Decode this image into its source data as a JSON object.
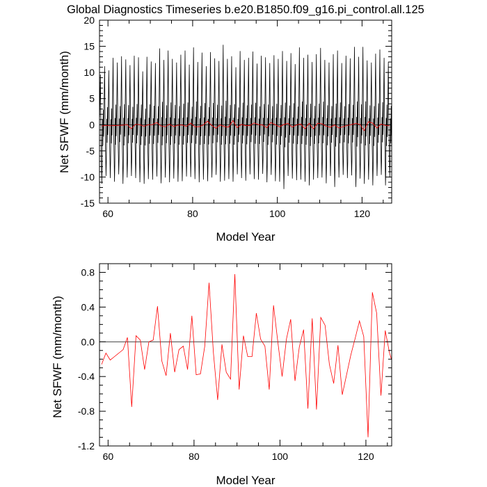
{
  "title": "Global Diagnostics Timeseries b.e20.B1850.f09_g16.pi_control.all.125",
  "colors": {
    "monthly": "#000000",
    "annual": "#ff0000",
    "zero_line": "#000000",
    "frame": "#000000"
  },
  "chart_data": [
    {
      "type": "line",
      "xlabel": "Model Year",
      "ylabel": "Net SFWF (mm/month)",
      "xlim": [
        58,
        127
      ],
      "ylim": [
        -15,
        20
      ],
      "xticks": [
        60,
        80,
        100,
        120
      ],
      "xtick_labels": [
        "60",
        "80",
        "100",
        "120"
      ],
      "yticks": [
        -15,
        -10,
        -5,
        0,
        5,
        10,
        15,
        20
      ],
      "ytick_labels": [
        "-15",
        "-10",
        "-5",
        "0",
        "5",
        "10",
        "15",
        "20"
      ],
      "minor_xtick_step": 5,
      "minor_ytick_step": 1,
      "reference_line": 0,
      "grid": false,
      "series": [
        {
          "kind": "monthly",
          "color": "#000000",
          "x_start": 58,
          "points_per_year": 12,
          "annual_maxima": [
            9.6,
            11.2,
            10.4,
            12.8,
            11.9,
            13.1,
            12.5,
            11.4,
            13.2,
            12.9,
            10.2,
            13.0,
            12.1,
            11.8,
            14.6,
            12.4,
            14.2,
            12.6,
            11.9,
            13.4,
            14.2,
            11.5,
            14.8,
            12.0,
            13.8,
            11.2,
            13.9,
            12.7,
            12.2,
            15.3,
            12.6,
            13.1,
            11.0,
            14.1,
            12.4,
            12.8,
            14.0,
            11.7,
            13.2,
            12.9,
            11.8,
            13.3,
            12.6,
            14.1,
            12.2,
            13.7,
            11.6,
            14.8,
            12.8,
            13.4,
            12.0,
            13.5,
            14.7,
            12.4,
            11.9,
            13.5,
            14.2,
            11.8,
            13.2,
            12.7,
            14.9,
            13.0,
            14.9,
            12.3,
            11.9,
            13.6,
            14.4,
            12.8,
            12.0
          ],
          "annual_minima": [
            -11.3,
            -9.8,
            -10.2,
            -10.9,
            -9.5,
            -11.3,
            -10.1,
            -9.8,
            -10.2,
            -11.0,
            -11.3,
            -10.4,
            -10.5,
            -9.9,
            -11.2,
            -10.1,
            -11.0,
            -10.3,
            -10.9,
            -10.8,
            -9.9,
            -10.0,
            -10.4,
            -11.0,
            -10.5,
            -10.8,
            -10.1,
            -9.6,
            -10.9,
            -10.7,
            -10.4,
            -10.9,
            -9.5,
            -10.2,
            -10.7,
            -9.5,
            -10.4,
            -10.5,
            -9.4,
            -11.0,
            -9.6,
            -10.8,
            -10.9,
            -12.3,
            -9.8,
            -10.3,
            -10.6,
            -10.5,
            -10.9,
            -11.6,
            -10.5,
            -10.2,
            -10.1,
            -11.2,
            -9.8,
            -11.9,
            -10.1,
            -9.6,
            -10.2,
            -9.7,
            -11.9,
            -10.3,
            -11.3,
            -10.5,
            -11.6,
            -9.8,
            -9.6,
            -11.6,
            -10.1
          ]
        },
        {
          "kind": "annual",
          "color": "#ff0000",
          "x": [
            58,
            59,
            60,
            61,
            62,
            63,
            64,
            65,
            66,
            67,
            68,
            69,
            70,
            71,
            72,
            73,
            74,
            75,
            76,
            77,
            78,
            79,
            80,
            81,
            82,
            83,
            84,
            85,
            86,
            87,
            88,
            89,
            90,
            91,
            92,
            93,
            94,
            95,
            96,
            97,
            98,
            99,
            100,
            101,
            102,
            103,
            104,
            105,
            106,
            107,
            108,
            109,
            110,
            111,
            112,
            113,
            114,
            115,
            116,
            117,
            118,
            119,
            120,
            121,
            122,
            123,
            124,
            125,
            126
          ],
          "y": [
            -0.26,
            -0.13,
            -0.21,
            -0.17,
            -0.13,
            -0.09,
            0.05,
            -0.75,
            0.07,
            0.02,
            -0.32,
            0.0,
            0.02,
            0.41,
            -0.22,
            -0.39,
            0.1,
            -0.35,
            -0.09,
            -0.05,
            -0.32,
            0.3,
            -0.38,
            -0.37,
            -0.05,
            0.68,
            -0.12,
            -0.67,
            -0.03,
            -0.35,
            -0.43,
            0.78,
            -0.55,
            0.07,
            -0.17,
            -0.17,
            0.33,
            0.03,
            -0.05,
            -0.55,
            0.42,
            0.0,
            -0.4,
            0.03,
            0.26,
            -0.45,
            -0.06,
            0.14,
            -0.77,
            0.27,
            -0.78,
            0.28,
            0.19,
            -0.26,
            -0.48,
            -0.04,
            -0.61,
            -0.38,
            -0.15,
            0.04,
            0.24,
            0.06,
            -1.1,
            0.57,
            0.33,
            -0.62,
            0.13,
            -0.13,
            -0.21
          ]
        }
      ]
    },
    {
      "type": "line",
      "xlabel": "Model Year",
      "ylabel": "Net SFWF (mm/month)",
      "xlim": [
        58,
        126
      ],
      "ylim": [
        -1.2,
        0.9
      ],
      "xticks": [
        60,
        80,
        100,
        120
      ],
      "xtick_labels": [
        "60",
        "80",
        "100",
        "120"
      ],
      "yticks": [
        -1.2,
        -0.8,
        -0.4,
        0.0,
        0.4,
        0.8
      ],
      "ytick_labels": [
        "-1.2",
        "-0.8",
        "-0.4",
        "0.0",
        "0.4",
        "0.8"
      ],
      "minor_xtick_step": 5,
      "minor_ytick_step": 0.1,
      "reference_line": 0,
      "grid": false,
      "series": [
        {
          "kind": "annual",
          "color": "#ff0000",
          "x": [
            58,
            59,
            60,
            61,
            62,
            63,
            64,
            65,
            66,
            67,
            68,
            69,
            70,
            71,
            72,
            73,
            74,
            75,
            76,
            77,
            78,
            79,
            80,
            81,
            82,
            83,
            84,
            85,
            86,
            87,
            88,
            89,
            90,
            91,
            92,
            93,
            94,
            95,
            96,
            97,
            98,
            99,
            100,
            101,
            102,
            103,
            104,
            105,
            106,
            107,
            108,
            109,
            110,
            111,
            112,
            113,
            114,
            115,
            116,
            117,
            118,
            119,
            120,
            121,
            122,
            123,
            124,
            125,
            126
          ],
          "y": [
            -0.26,
            -0.13,
            -0.21,
            -0.17,
            -0.13,
            -0.09,
            0.05,
            -0.75,
            0.07,
            0.02,
            -0.32,
            0.0,
            0.02,
            0.41,
            -0.22,
            -0.39,
            0.1,
            -0.35,
            -0.09,
            -0.05,
            -0.32,
            0.3,
            -0.38,
            -0.37,
            -0.05,
            0.68,
            -0.12,
            -0.67,
            -0.03,
            -0.35,
            -0.43,
            0.78,
            -0.55,
            0.07,
            -0.17,
            -0.17,
            0.33,
            0.03,
            -0.05,
            -0.55,
            0.42,
            0.0,
            -0.4,
            0.03,
            0.26,
            -0.45,
            -0.06,
            0.14,
            -0.77,
            0.27,
            -0.78,
            0.28,
            0.19,
            -0.26,
            -0.48,
            -0.04,
            -0.61,
            -0.38,
            -0.15,
            0.04,
            0.24,
            0.06,
            -1.1,
            0.57,
            0.33,
            -0.62,
            0.13,
            -0.13,
            -0.21
          ]
        }
      ]
    }
  ]
}
